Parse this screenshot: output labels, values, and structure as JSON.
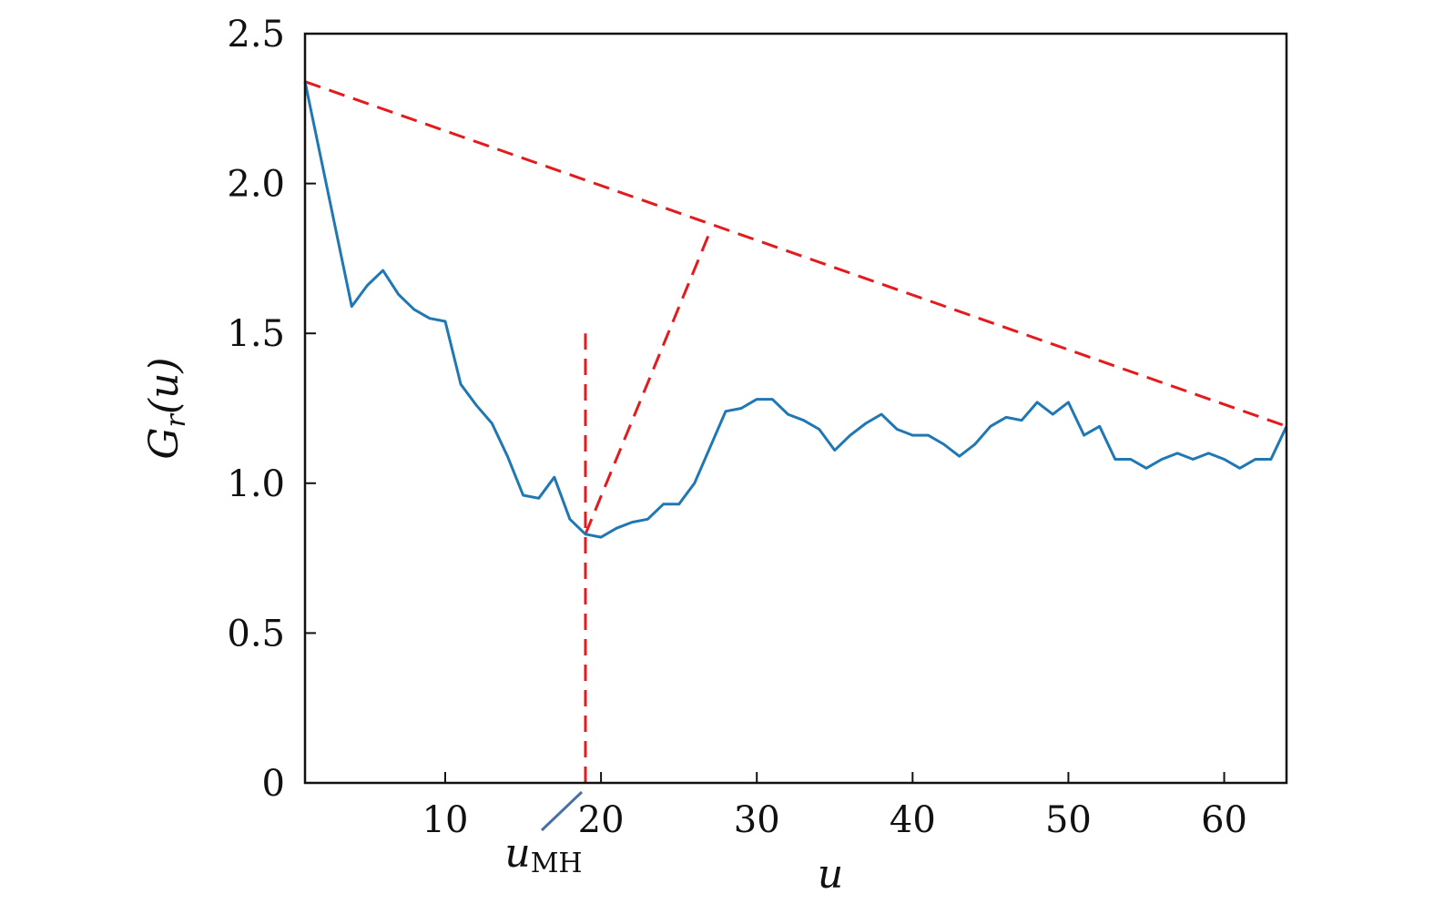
{
  "chart_data": {
    "type": "line",
    "xlabel": "u",
    "ylabel_main": "G",
    "ylabel_sub": "r",
    "ylabel_arg": "(u)",
    "xlim": [
      1,
      64
    ],
    "ylim": [
      0,
      2.5
    ],
    "xticks": [
      10,
      20,
      30,
      40,
      50,
      60
    ],
    "xtick_labels": [
      "10",
      "20",
      "30",
      "40",
      "50",
      "60"
    ],
    "yticks": [
      0,
      0.5,
      1.0,
      1.5,
      2.0,
      2.5
    ],
    "ytick_labels": [
      "0",
      "0.5",
      "1.0",
      "1.5",
      "2.0",
      "2.5"
    ],
    "grid": false,
    "series": [
      {
        "color": "#1f77b4",
        "x": [
          1,
          4,
          5,
          6,
          7,
          8,
          9,
          10,
          11,
          12,
          13,
          14,
          15,
          16,
          17,
          18,
          19,
          20,
          21,
          22,
          23,
          24,
          25,
          26,
          27,
          28,
          29,
          30,
          31,
          32,
          33,
          34,
          35,
          36,
          37,
          38,
          39,
          40,
          41,
          42,
          43,
          44,
          45,
          46,
          47,
          48,
          49,
          50,
          51,
          52,
          53,
          54,
          55,
          56,
          57,
          58,
          59,
          60,
          61,
          62,
          63,
          64
        ],
        "y": [
          2.34,
          1.59,
          1.66,
          1.71,
          1.63,
          1.58,
          1.55,
          1.54,
          1.33,
          1.26,
          1.2,
          1.09,
          0.96,
          0.95,
          1.02,
          0.88,
          0.83,
          0.82,
          0.85,
          0.87,
          0.88,
          0.93,
          0.93,
          1.0,
          1.12,
          1.24,
          1.25,
          1.28,
          1.28,
          1.23,
          1.21,
          1.18,
          1.11,
          1.16,
          1.2,
          1.23,
          1.18,
          1.16,
          1.16,
          1.13,
          1.09,
          1.13,
          1.19,
          1.22,
          1.21,
          1.27,
          1.23,
          1.27,
          1.16,
          1.19,
          1.08,
          1.08,
          1.05,
          1.08,
          1.1,
          1.08,
          1.1,
          1.08,
          1.05,
          1.08,
          1.08,
          1.19
        ]
      }
    ],
    "annotations": {
      "color": "#e41a1c",
      "chord": {
        "from": [
          1,
          2.34
        ],
        "to": [
          64,
          1.19
        ]
      },
      "normal": {
        "from": [
          19,
          0.83
        ],
        "to": [
          27,
          1.84
        ]
      },
      "vertical": {
        "x": 19,
        "y_from": 0,
        "y_to": 1.5
      },
      "marker_label_main": "u",
      "marker_label_sub": "MH",
      "marker_color": "#4a6fa5"
    }
  }
}
